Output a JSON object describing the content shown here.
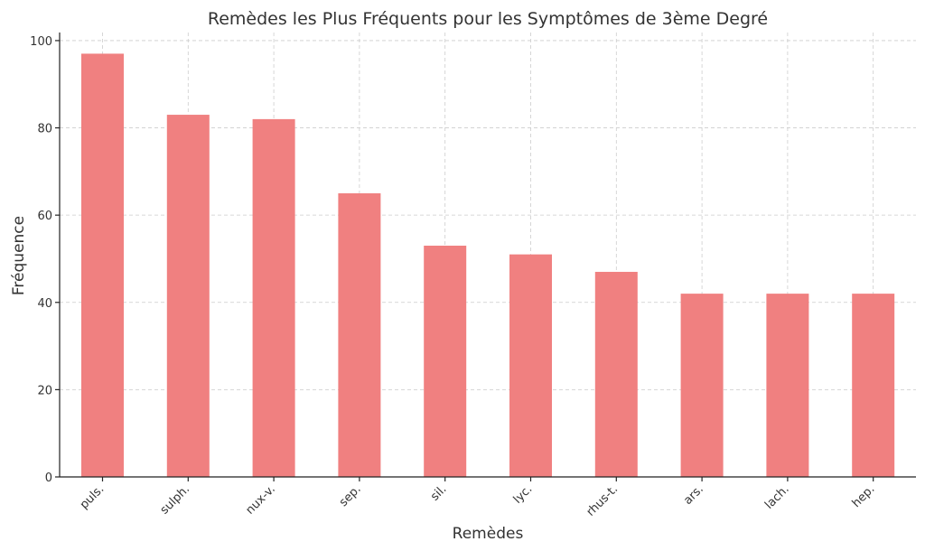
{
  "chart_data": {
    "type": "bar",
    "title": "Remèdes les Plus Fréquents pour les Symptômes de 3ème Degré",
    "xlabel": "Remèdes",
    "ylabel": "Fréquence",
    "categories": [
      "puls.",
      "sulph.",
      "nux-v.",
      "sep.",
      "sil.",
      "lyc.",
      "rhus-t.",
      "ars.",
      "lach.",
      "hep."
    ],
    "values": [
      97,
      83,
      82,
      65,
      53,
      51,
      47,
      42,
      42,
      42
    ],
    "ylim": [
      0,
      101.85
    ],
    "yticks": [
      0,
      20,
      40,
      60,
      80,
      100
    ],
    "grid": true,
    "bar_color": "#f08080"
  }
}
